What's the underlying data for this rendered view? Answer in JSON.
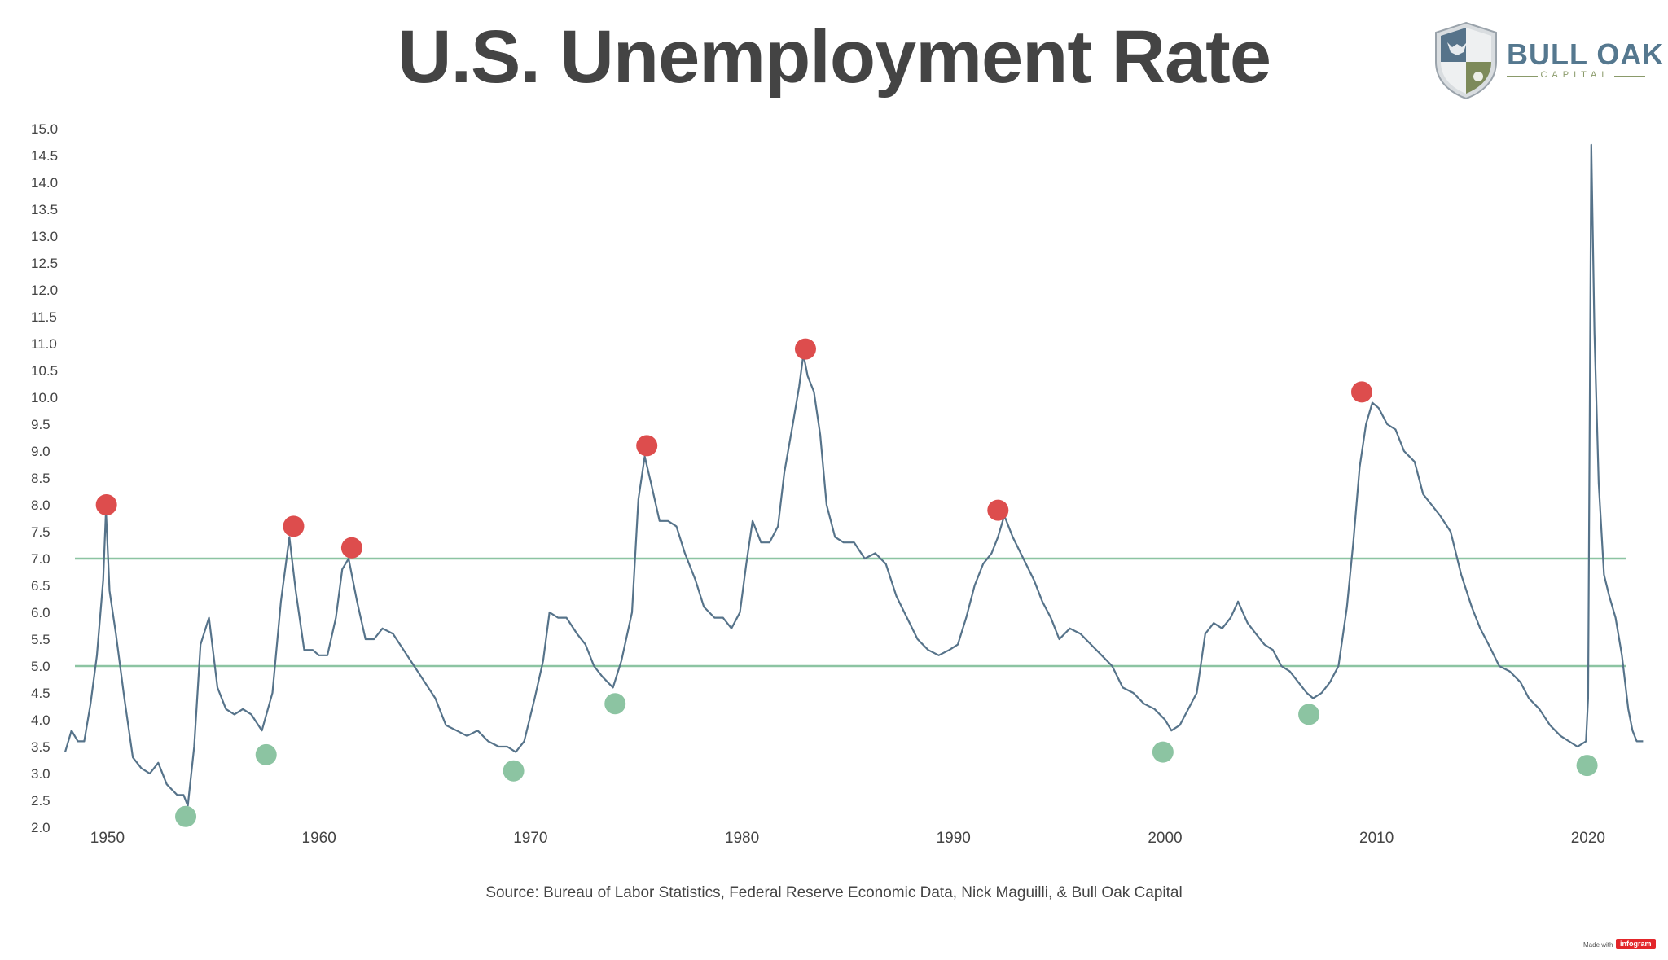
{
  "title": "U.S. Unemployment Rate",
  "logo": {
    "brand": "BULL OAK",
    "sub": "CAPITAL"
  },
  "source": "Source: Bureau of Labor Statistics, Federal Reserve Economic Data, Nick Maguilli, & Bull Oak Capital",
  "footer": {
    "made_with": "Made with",
    "brand": "infogram"
  },
  "colors": {
    "line": "#56738a",
    "peak": "#dd4d4d",
    "trough": "#8cc4a2",
    "reference": "#8cc4a2",
    "title": "#444444"
  },
  "chart_data": {
    "type": "line",
    "title": "U.S. Unemployment Rate",
    "xlabel": "",
    "ylabel": "",
    "xlim": [
      1948.0,
      2022.7
    ],
    "ylim": [
      2.0,
      15.0
    ],
    "x_ticks": [
      1950,
      1960,
      1970,
      1980,
      1990,
      2000,
      2010,
      2020
    ],
    "y_ticks": [
      "2.0",
      "2.5",
      "3.0",
      "3.5",
      "4.0",
      "4.5",
      "5.0",
      "5.5",
      "6.0",
      "6.5",
      "7.0",
      "7.5",
      "8.0",
      "8.5",
      "9.0",
      "9.5",
      "10.0",
      "10.5",
      "11.0",
      "11.5",
      "12.0",
      "12.5",
      "13.0",
      "13.5",
      "14.0",
      "14.5",
      "15.0"
    ],
    "grid": false,
    "legend": "none",
    "reference_lines": [
      7.0,
      5.0
    ],
    "series": [
      {
        "points": [
          [
            1948.0,
            3.4
          ],
          [
            1948.3,
            3.8
          ],
          [
            1948.6,
            3.6
          ],
          [
            1948.9,
            3.6
          ],
          [
            1949.2,
            4.3
          ],
          [
            1949.5,
            5.2
          ],
          [
            1949.8,
            6.6
          ],
          [
            1949.93,
            7.9
          ],
          [
            1950.1,
            6.4
          ],
          [
            1950.4,
            5.6
          ],
          [
            1950.8,
            4.4
          ],
          [
            1951.2,
            3.3
          ],
          [
            1951.6,
            3.1
          ],
          [
            1952.0,
            3.0
          ],
          [
            1952.4,
            3.2
          ],
          [
            1952.8,
            2.8
          ],
          [
            1953.3,
            2.6
          ],
          [
            1953.6,
            2.6
          ],
          [
            1953.8,
            2.4
          ],
          [
            1954.1,
            3.5
          ],
          [
            1954.4,
            5.4
          ],
          [
            1954.8,
            5.9
          ],
          [
            1955.2,
            4.6
          ],
          [
            1955.6,
            4.2
          ],
          [
            1956.0,
            4.1
          ],
          [
            1956.4,
            4.2
          ],
          [
            1956.8,
            4.1
          ],
          [
            1957.3,
            3.8
          ],
          [
            1957.8,
            4.5
          ],
          [
            1958.2,
            6.2
          ],
          [
            1958.6,
            7.4
          ],
          [
            1958.9,
            6.4
          ],
          [
            1959.3,
            5.3
          ],
          [
            1959.7,
            5.3
          ],
          [
            1960.0,
            5.2
          ],
          [
            1960.4,
            5.2
          ],
          [
            1960.8,
            5.9
          ],
          [
            1961.1,
            6.8
          ],
          [
            1961.4,
            7.0
          ],
          [
            1961.8,
            6.2
          ],
          [
            1962.2,
            5.5
          ],
          [
            1962.6,
            5.5
          ],
          [
            1963.0,
            5.7
          ],
          [
            1963.5,
            5.6
          ],
          [
            1964.0,
            5.3
          ],
          [
            1964.5,
            5.0
          ],
          [
            1965.0,
            4.7
          ],
          [
            1965.5,
            4.4
          ],
          [
            1966.0,
            3.9
          ],
          [
            1966.5,
            3.8
          ],
          [
            1967.0,
            3.7
          ],
          [
            1967.5,
            3.8
          ],
          [
            1968.0,
            3.6
          ],
          [
            1968.5,
            3.5
          ],
          [
            1968.9,
            3.5
          ],
          [
            1969.3,
            3.4
          ],
          [
            1969.7,
            3.6
          ],
          [
            1970.2,
            4.4
          ],
          [
            1970.6,
            5.1
          ],
          [
            1970.9,
            6.0
          ],
          [
            1971.3,
            5.9
          ],
          [
            1971.7,
            5.9
          ],
          [
            1972.2,
            5.6
          ],
          [
            1972.6,
            5.4
          ],
          [
            1973.0,
            5.0
          ],
          [
            1973.4,
            4.8
          ],
          [
            1973.9,
            4.6
          ],
          [
            1974.3,
            5.1
          ],
          [
            1974.8,
            6.0
          ],
          [
            1975.1,
            8.1
          ],
          [
            1975.4,
            8.9
          ],
          [
            1975.7,
            8.4
          ],
          [
            1976.1,
            7.7
          ],
          [
            1976.5,
            7.7
          ],
          [
            1976.9,
            7.6
          ],
          [
            1977.3,
            7.1
          ],
          [
            1977.8,
            6.6
          ],
          [
            1978.2,
            6.1
          ],
          [
            1978.7,
            5.9
          ],
          [
            1979.1,
            5.9
          ],
          [
            1979.5,
            5.7
          ],
          [
            1979.9,
            6.0
          ],
          [
            1980.2,
            6.9
          ],
          [
            1980.5,
            7.7
          ],
          [
            1980.9,
            7.3
          ],
          [
            1981.3,
            7.3
          ],
          [
            1981.7,
            7.6
          ],
          [
            1982.0,
            8.6
          ],
          [
            1982.4,
            9.5
          ],
          [
            1982.7,
            10.2
          ],
          [
            1982.9,
            10.8
          ],
          [
            1983.1,
            10.4
          ],
          [
            1983.4,
            10.1
          ],
          [
            1983.7,
            9.3
          ],
          [
            1984.0,
            8.0
          ],
          [
            1984.4,
            7.4
          ],
          [
            1984.8,
            7.3
          ],
          [
            1985.3,
            7.3
          ],
          [
            1985.8,
            7.0
          ],
          [
            1986.3,
            7.1
          ],
          [
            1986.8,
            6.9
          ],
          [
            1987.3,
            6.3
          ],
          [
            1987.8,
            5.9
          ],
          [
            1988.3,
            5.5
          ],
          [
            1988.8,
            5.3
          ],
          [
            1989.3,
            5.2
          ],
          [
            1989.8,
            5.3
          ],
          [
            1990.2,
            5.4
          ],
          [
            1990.6,
            5.9
          ],
          [
            1991.0,
            6.5
          ],
          [
            1991.4,
            6.9
          ],
          [
            1991.8,
            7.1
          ],
          [
            1992.1,
            7.4
          ],
          [
            1992.4,
            7.8
          ],
          [
            1992.8,
            7.4
          ],
          [
            1993.3,
            7.0
          ],
          [
            1993.8,
            6.6
          ],
          [
            1994.2,
            6.2
          ],
          [
            1994.6,
            5.9
          ],
          [
            1995.0,
            5.5
          ],
          [
            1995.5,
            5.7
          ],
          [
            1996.0,
            5.6
          ],
          [
            1996.5,
            5.4
          ],
          [
            1997.0,
            5.2
          ],
          [
            1997.5,
            5.0
          ],
          [
            1998.0,
            4.6
          ],
          [
            1998.5,
            4.5
          ],
          [
            1999.0,
            4.3
          ],
          [
            1999.5,
            4.2
          ],
          [
            2000.0,
            4.0
          ],
          [
            2000.3,
            3.8
          ],
          [
            2000.7,
            3.9
          ],
          [
            2001.1,
            4.2
          ],
          [
            2001.5,
            4.5
          ],
          [
            2001.9,
            5.6
          ],
          [
            2002.3,
            5.8
          ],
          [
            2002.7,
            5.7
          ],
          [
            2003.1,
            5.9
          ],
          [
            2003.45,
            6.2
          ],
          [
            2003.9,
            5.8
          ],
          [
            2004.3,
            5.6
          ],
          [
            2004.7,
            5.4
          ],
          [
            2005.1,
            5.3
          ],
          [
            2005.5,
            5.0
          ],
          [
            2005.9,
            4.9
          ],
          [
            2006.3,
            4.7
          ],
          [
            2006.7,
            4.5
          ],
          [
            2007.0,
            4.4
          ],
          [
            2007.4,
            4.5
          ],
          [
            2007.8,
            4.7
          ],
          [
            2008.2,
            5.0
          ],
          [
            2008.6,
            6.1
          ],
          [
            2008.9,
            7.3
          ],
          [
            2009.2,
            8.7
          ],
          [
            2009.5,
            9.5
          ],
          [
            2009.8,
            9.9
          ],
          [
            2010.1,
            9.8
          ],
          [
            2010.5,
            9.5
          ],
          [
            2010.9,
            9.4
          ],
          [
            2011.3,
            9.0
          ],
          [
            2011.8,
            8.8
          ],
          [
            2012.2,
            8.2
          ],
          [
            2012.6,
            8.0
          ],
          [
            2013.0,
            7.8
          ],
          [
            2013.5,
            7.5
          ],
          [
            2014.0,
            6.7
          ],
          [
            2014.5,
            6.1
          ],
          [
            2014.9,
            5.7
          ],
          [
            2015.3,
            5.4
          ],
          [
            2015.8,
            5.0
          ],
          [
            2016.3,
            4.9
          ],
          [
            2016.8,
            4.7
          ],
          [
            2017.2,
            4.4
          ],
          [
            2017.7,
            4.2
          ],
          [
            2018.2,
            3.9
          ],
          [
            2018.7,
            3.7
          ],
          [
            2019.1,
            3.6
          ],
          [
            2019.5,
            3.5
          ],
          [
            2019.9,
            3.6
          ],
          [
            2020.0,
            4.4
          ],
          [
            2020.15,
            14.7
          ],
          [
            2020.3,
            11.2
          ],
          [
            2020.5,
            8.4
          ],
          [
            2020.75,
            6.7
          ],
          [
            2021.0,
            6.3
          ],
          [
            2021.3,
            5.9
          ],
          [
            2021.6,
            5.2
          ],
          [
            2021.9,
            4.2
          ],
          [
            2022.1,
            3.8
          ],
          [
            2022.3,
            3.6
          ],
          [
            2022.6,
            3.6
          ]
        ]
      }
    ],
    "peaks": [
      [
        1949.95,
        8.0
      ],
      [
        1958.8,
        7.6
      ],
      [
        1961.55,
        7.2
      ],
      [
        1975.5,
        9.1
      ],
      [
        1983.0,
        10.9
      ],
      [
        1992.1,
        7.9
      ],
      [
        2009.3,
        10.1
      ]
    ],
    "troughs": [
      [
        1953.7,
        2.2
      ],
      [
        1957.5,
        3.35
      ],
      [
        1969.2,
        3.05
      ],
      [
        1974.0,
        4.3
      ],
      [
        1999.9,
        3.4
      ],
      [
        2006.8,
        4.1
      ],
      [
        2019.95,
        3.15
      ]
    ]
  }
}
